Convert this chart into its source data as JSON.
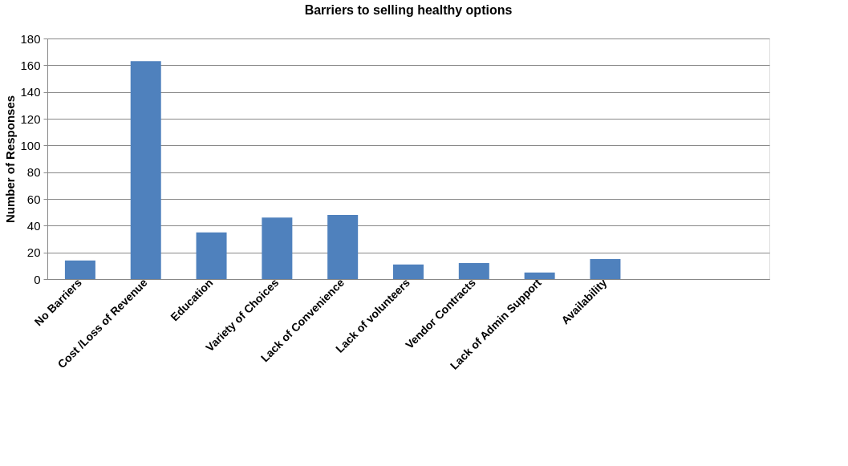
{
  "chart_data": {
    "type": "bar",
    "title": "Barriers to selling healthy options",
    "ylabel": "Number  of Responses",
    "categories": [
      "No Barriers",
      "Cost /Loss of Revenue",
      "Education",
      "Variety of Choices",
      "Lack of Convenience",
      "Lack of volunteers",
      "Vendor Contracts",
      "Lack of Admin Support",
      "Availability",
      null,
      null
    ],
    "values": [
      14,
      163,
      35,
      46,
      48,
      11,
      12,
      5,
      15,
      null,
      null
    ],
    "color": "#4f81bd",
    "ylim": [
      0,
      180
    ],
    "yticks": [
      0,
      20,
      40,
      60,
      80,
      100,
      120,
      140,
      160,
      180
    ],
    "grid": "y"
  }
}
